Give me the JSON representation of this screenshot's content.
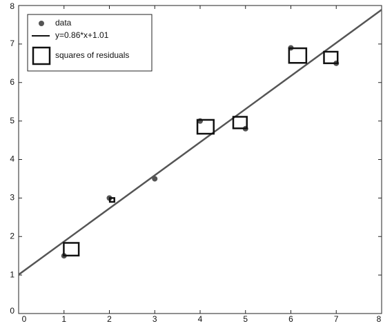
{
  "chart_data": {
    "type": "scatter",
    "series": [
      {
        "name": "data",
        "type": "scatter",
        "color": "#555555",
        "x": [
          1,
          2,
          3,
          4,
          5,
          6,
          7
        ],
        "values": [
          1.5,
          3,
          3.5,
          5,
          4.8,
          6.9,
          6.5
        ]
      },
      {
        "name": "y=0.86*x+1.01",
        "type": "line",
        "color": "#555555",
        "x": [
          0,
          8
        ],
        "values": [
          1.01,
          7.89
        ]
      },
      {
        "name": "squares of residuals",
        "type": "square",
        "color": "#111111",
        "x": [
          1.16,
          2.06,
          4.12,
          4.88,
          6.15,
          6.88
        ],
        "values": [
          1.67,
          2.95,
          4.85,
          4.96,
          6.7,
          6.65
        ],
        "sizes": [
          0.33,
          0.1,
          0.36,
          0.3,
          0.38,
          0.3
        ]
      }
    ],
    "xlim": [
      0,
      8
    ],
    "xticks": [
      0,
      1,
      2,
      3,
      4,
      5,
      6,
      7,
      8
    ],
    "ylim": [
      0,
      8
    ],
    "yticks": [
      0,
      1,
      2,
      3,
      4,
      5,
      6,
      7,
      8
    ],
    "legend": "upper left"
  }
}
